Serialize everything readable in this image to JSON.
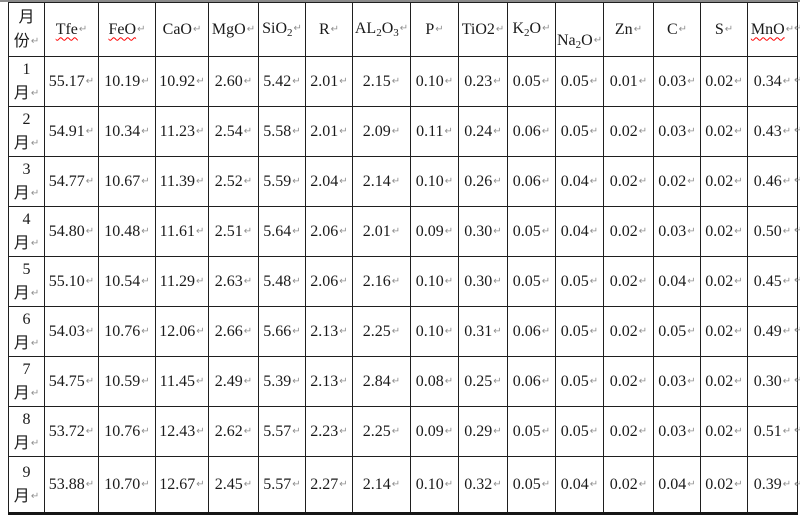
{
  "document": {
    "pilcrow_mark": "↵",
    "colors": {
      "background": "#ffffff",
      "border": "#1f1f1f",
      "top_rule": "#8a8a8a",
      "spellcheck_underline": "#ff0000",
      "paragraph_mark": "#8f8f8f",
      "text": "#1a1a1a"
    }
  },
  "table": {
    "header": {
      "month_lines": [
        "月",
        "份"
      ],
      "columns": [
        {
          "name": "Tfe",
          "misspelled": true,
          "parts": [
            {
              "t": "Tfe"
            }
          ]
        },
        {
          "name": "FeO",
          "misspelled": true,
          "parts": [
            {
              "t": "FeO"
            }
          ]
        },
        {
          "name": "CaO",
          "misspelled": false,
          "parts": [
            {
              "t": "CaO"
            }
          ]
        },
        {
          "name": "MgO",
          "misspelled": false,
          "parts": [
            {
              "t": "MgO"
            }
          ]
        },
        {
          "name": "SiO2",
          "misspelled": false,
          "parts": [
            {
              "t": "SiO"
            },
            {
              "t": "2",
              "sub": true
            }
          ]
        },
        {
          "name": "R",
          "misspelled": false,
          "parts": [
            {
              "t": "R"
            }
          ]
        },
        {
          "name": "AL2O3",
          "misspelled": false,
          "parts": [
            {
              "t": "AL"
            },
            {
              "t": "2",
              "sub": true
            },
            {
              "t": "O"
            },
            {
              "t": "3",
              "sub": true
            }
          ]
        },
        {
          "name": "P",
          "misspelled": false,
          "parts": [
            {
              "t": "P"
            }
          ]
        },
        {
          "name": "TiO2",
          "misspelled": false,
          "parts": [
            {
              "t": "TiO2"
            }
          ]
        },
        {
          "name": "K2O",
          "misspelled": false,
          "parts": [
            {
              "t": "K"
            },
            {
              "t": "2",
              "sub": true
            },
            {
              "t": "O"
            }
          ]
        },
        {
          "name": "Na2O",
          "misspelled": false,
          "parts": [
            {
              "t": "Na"
            },
            {
              "t": "2",
              "sub": true
            },
            {
              "t": "O",
              "br": true
            }
          ]
        },
        {
          "name": "Zn",
          "misspelled": false,
          "parts": [
            {
              "t": "Zn"
            }
          ]
        },
        {
          "name": "C",
          "misspelled": false,
          "parts": [
            {
              "t": "C"
            }
          ]
        },
        {
          "name": "S",
          "misspelled": false,
          "parts": [
            {
              "t": "S"
            }
          ]
        },
        {
          "name": "MnO",
          "misspelled": true,
          "parts": [
            {
              "t": "MnO"
            }
          ]
        }
      ]
    },
    "rows": [
      {
        "month": "1",
        "month_suffix": "月",
        "values": [
          "55.17",
          "10.19",
          "10.92",
          "2.60",
          "5.42",
          "2.01",
          "2.15",
          "0.10",
          "0.23",
          "0.05",
          "0.05",
          "0.01",
          "0.03",
          "0.02",
          "0.34"
        ]
      },
      {
        "month": "2",
        "month_suffix": "月",
        "values": [
          "54.91",
          "10.34",
          "11.23",
          "2.54",
          "5.58",
          "2.01",
          "2.09",
          "0.11",
          "0.24",
          "0.06",
          "0.05",
          "0.02",
          "0.03",
          "0.02",
          "0.43"
        ]
      },
      {
        "month": "3",
        "month_suffix": "月",
        "values": [
          "54.77",
          "10.67",
          "11.39",
          "2.52",
          "5.59",
          "2.04",
          "2.14",
          "0.10",
          "0.26",
          "0.06",
          "0.04",
          "0.02",
          "0.02",
          "0.02",
          "0.46"
        ]
      },
      {
        "month": "4",
        "month_suffix": "月",
        "values": [
          "54.80",
          "10.48",
          "11.61",
          "2.51",
          "5.64",
          "2.06",
          "2.01",
          "0.09",
          "0.30",
          "0.05",
          "0.04",
          "0.02",
          "0.03",
          "0.02",
          "0.50"
        ]
      },
      {
        "month": "5",
        "month_suffix": "月",
        "values": [
          "55.10",
          "10.54",
          "11.29",
          "2.63",
          "5.48",
          "2.06",
          "2.16",
          "0.10",
          "0.30",
          "0.05",
          "0.05",
          "0.02",
          "0.04",
          "0.02",
          "0.45"
        ]
      },
      {
        "month": "6",
        "month_suffix": "月",
        "values": [
          "54.03",
          "10.76",
          "12.06",
          "2.66",
          "5.66",
          "2.13",
          "2.25",
          "0.10",
          "0.31",
          "0.06",
          "0.05",
          "0.02",
          "0.05",
          "0.02",
          "0.49"
        ]
      },
      {
        "month": "7",
        "month_suffix": "月",
        "values": [
          "54.75",
          "10.59",
          "11.45",
          "2.49",
          "5.39",
          "2.13",
          "2.84",
          "0.08",
          "0.25",
          "0.06",
          "0.05",
          "0.02",
          "0.03",
          "0.02",
          "0.30"
        ]
      },
      {
        "month": "8",
        "month_suffix": "月",
        "values": [
          "53.72",
          "10.76",
          "12.43",
          "2.62",
          "5.57",
          "2.23",
          "2.25",
          "0.09",
          "0.29",
          "0.05",
          "0.05",
          "0.02",
          "0.03",
          "0.02",
          "0.51"
        ]
      },
      {
        "month": "9",
        "month_suffix": "月",
        "values": [
          "53.88",
          "10.70",
          "12.67",
          "2.45",
          "5.57",
          "2.27",
          "2.14",
          "0.10",
          "0.32",
          "0.05",
          "0.04",
          "0.02",
          "0.04",
          "0.02",
          "0.39"
        ]
      }
    ]
  }
}
